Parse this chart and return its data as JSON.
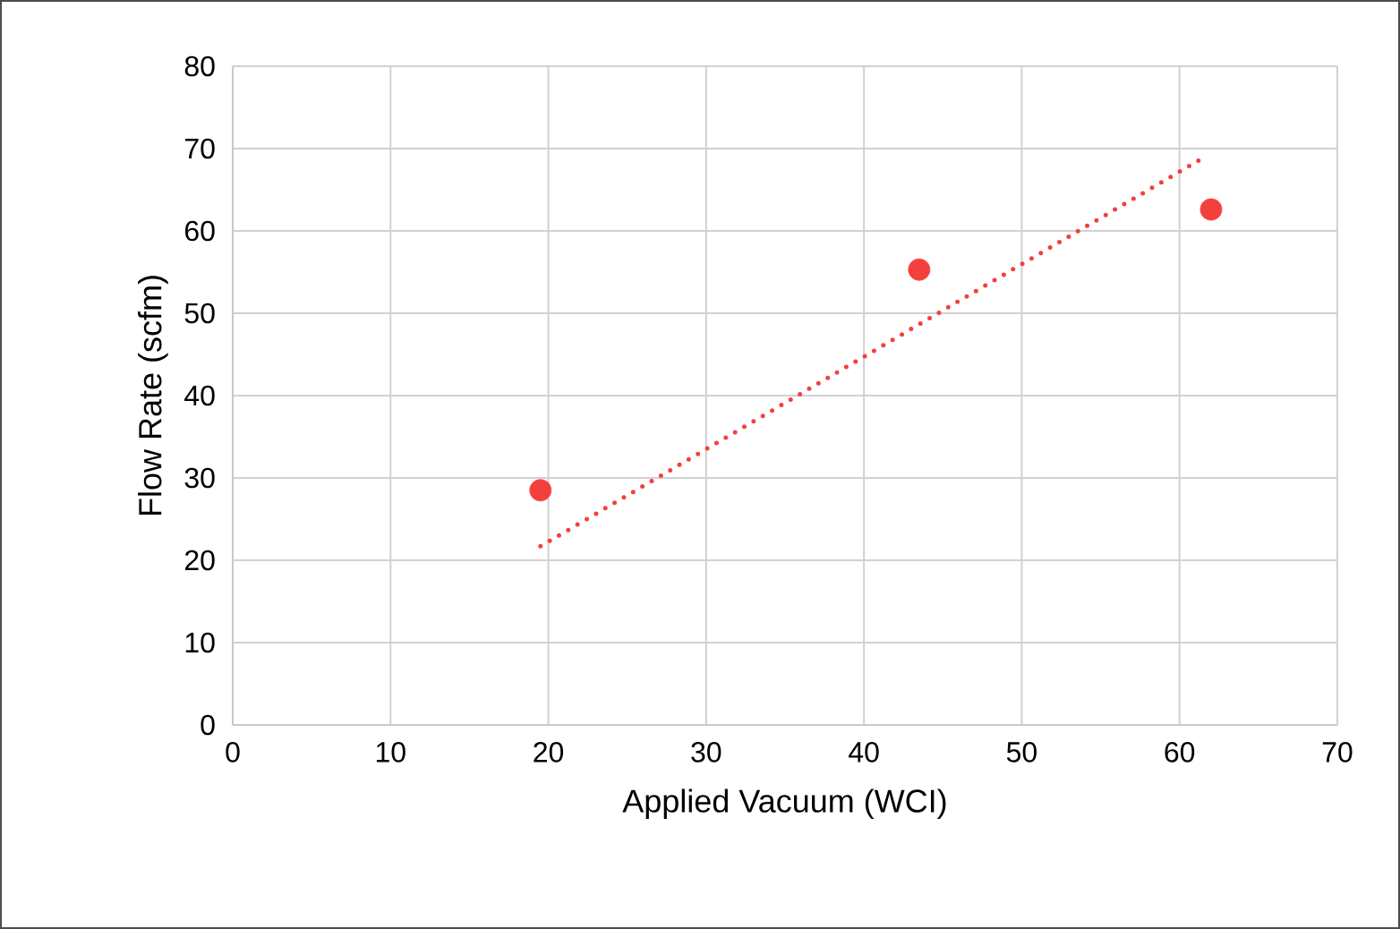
{
  "chart_data": {
    "type": "scatter",
    "xlabel": "Applied Vacuum (WCI)",
    "ylabel": "Flow Rate (scfm)",
    "xlim": [
      0,
      70
    ],
    "xticks": [
      0,
      10,
      20,
      30,
      40,
      50,
      60,
      70
    ],
    "ylim": [
      0,
      80
    ],
    "yticks": [
      0,
      10,
      20,
      30,
      40,
      50,
      60,
      70,
      80
    ],
    "grid": true,
    "series": [
      {
        "color": "#f4403c",
        "marker": "circle",
        "x": [
          19.5,
          43.5,
          62.0
        ],
        "values": [
          28.5,
          55.3,
          62.6
        ]
      },
      {
        "type": "line",
        "color": "#f4403c",
        "marker": "none",
        "line_style": "dotted",
        "x": [
          19.5,
          61.7
        ],
        "values": [
          21.7,
          69.1
        ]
      }
    ]
  }
}
